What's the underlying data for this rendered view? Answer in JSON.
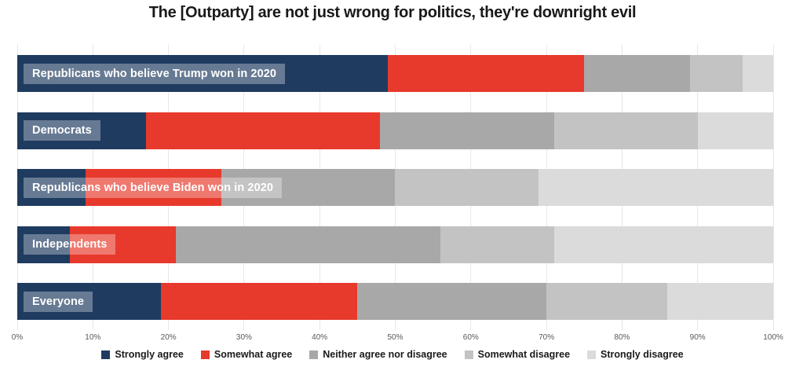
{
  "title": "The [Outparty] are not just wrong for politics, they're downright evil",
  "chart_data": {
    "type": "bar",
    "orientation": "horizontal",
    "stacked": true,
    "title": "The [Outparty] are not just wrong for politics, they're downright evil",
    "categories": [
      "Republicans who believe Trump won in 2020",
      "Democrats",
      "Republicans who believe Biden won in 2020",
      "Independents",
      "Everyone"
    ],
    "series": [
      {
        "name": "Strongly agree",
        "color": "#1f3b60",
        "values": [
          49,
          17,
          9,
          7,
          19
        ]
      },
      {
        "name": "Somewhat agree",
        "color": "#e7392c",
        "values": [
          26,
          31,
          18,
          14,
          26
        ]
      },
      {
        "name": "Neither agree nor disagree",
        "color": "#a8a8a8",
        "values": [
          14,
          23,
          23,
          35,
          25
        ]
      },
      {
        "name": "Somewhat disagree",
        "color": "#c3c3c3",
        "values": [
          7,
          19,
          19,
          15,
          16
        ]
      },
      {
        "name": "Strongly disagree",
        "color": "#dbdbdb",
        "values": [
          4,
          10,
          31,
          29,
          14
        ]
      }
    ],
    "xlim": [
      0,
      100
    ],
    "x_ticks": [
      "0%",
      "10%",
      "20%",
      "30%",
      "40%",
      "50%",
      "60%",
      "70%",
      "80%",
      "90%",
      "100%"
    ],
    "grid": "vertical",
    "legend_position": "bottom",
    "colors": {
      "gridline": "#e7e7e7",
      "tick_text": "#595959",
      "title_text": "#191919",
      "bar_label_text": "#ffffff",
      "bar_label_box": "rgba(255,255,255,0.32)"
    }
  }
}
